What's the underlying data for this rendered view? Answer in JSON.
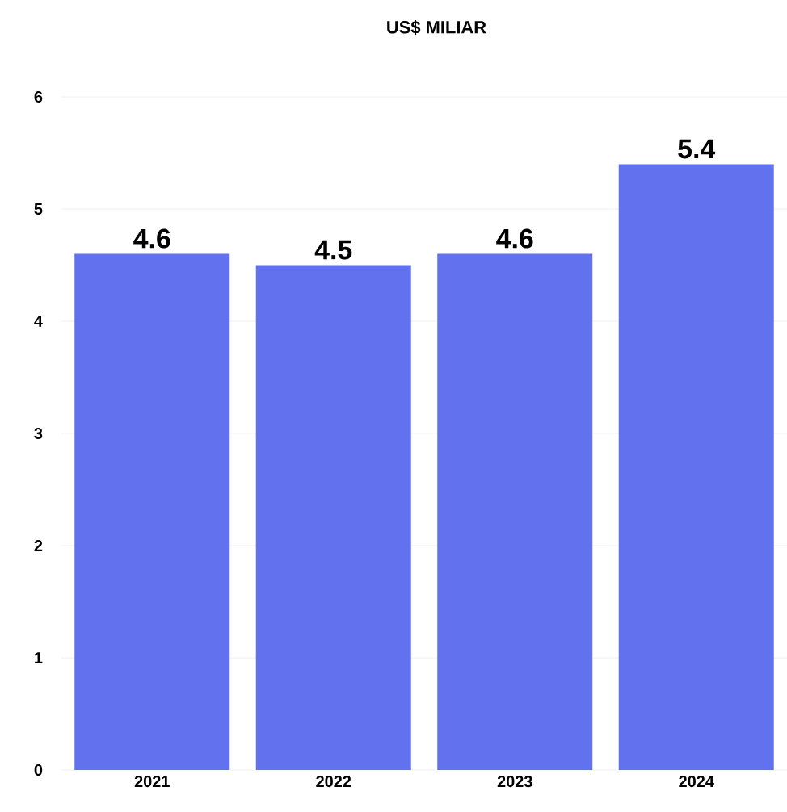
{
  "chart_data": {
    "type": "bar",
    "title": "US$ MILIAR",
    "categories": [
      "2021",
      "2022",
      "2023",
      "2024"
    ],
    "values": [
      4.6,
      4.5,
      4.6,
      5.4
    ],
    "color": "#6271ee",
    "ylim": [
      0,
      6
    ],
    "yticks": [
      0,
      1,
      2,
      3,
      4,
      5,
      6
    ],
    "grid": "y",
    "data_labels": true
  }
}
